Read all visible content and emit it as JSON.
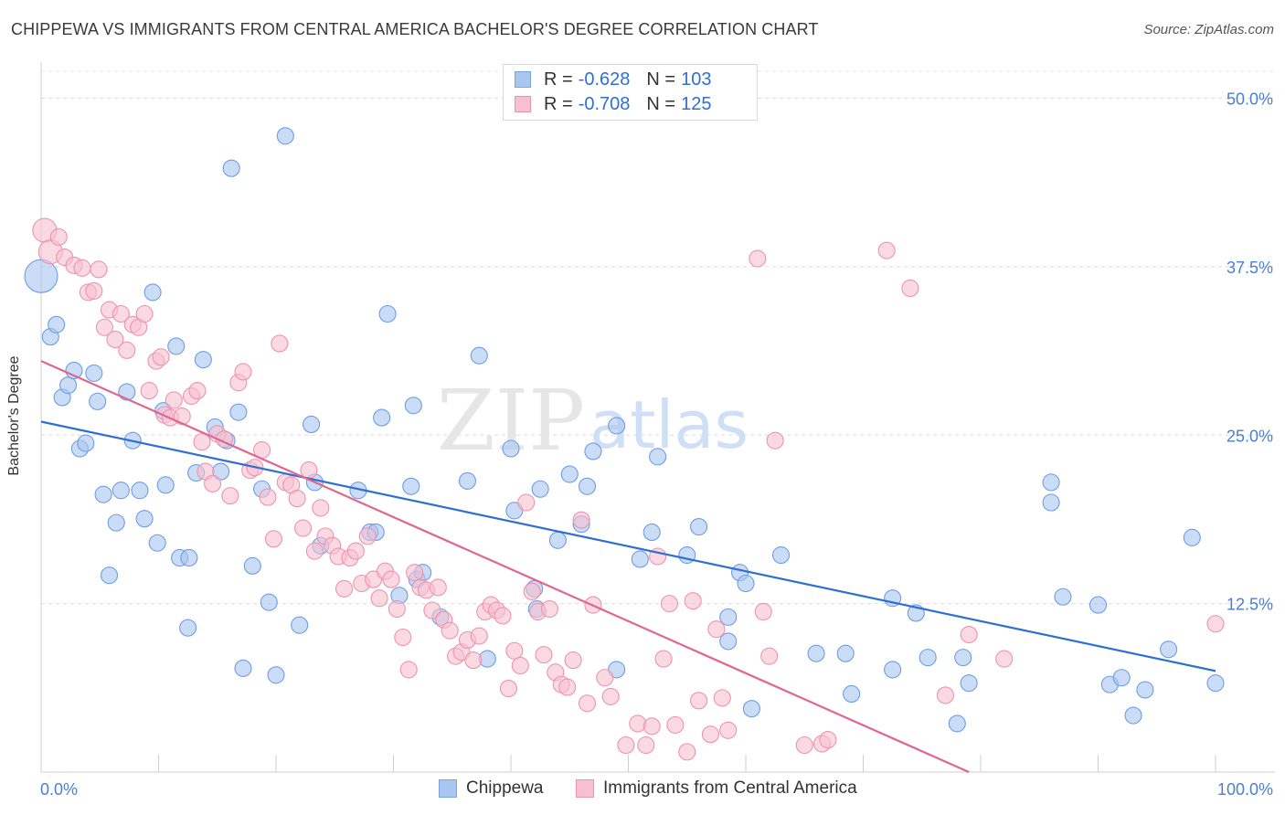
{
  "header": {
    "title": "CHIPPEWA VS IMMIGRANTS FROM CENTRAL AMERICA BACHELOR'S DEGREE CORRELATION CHART",
    "source": "Source: ZipAtlas.com"
  },
  "watermark": {
    "zip": "ZIP",
    "atlas": "atlas"
  },
  "legend": {
    "rows": [
      {
        "r_label": "R =",
        "r_value": "-0.628",
        "n_label": "N =",
        "n_value": "103",
        "color": "#a9c6f0",
        "border": "#7aa3e0"
      },
      {
        "r_label": "R =",
        "r_value": "-0.708",
        "n_label": "N =",
        "n_value": "125",
        "color": "#f8bfd0",
        "border": "#ec93ae"
      }
    ]
  },
  "bottom_legend": {
    "items": [
      {
        "label": "Chippewa",
        "color": "#a9c6f0",
        "border": "#7aa3e0"
      },
      {
        "label": "Immigrants from Central America",
        "color": "#f8bfd0",
        "border": "#ec93ae"
      }
    ]
  },
  "chart_data": {
    "type": "scatter",
    "title": "CHIPPEWA VS IMMIGRANTS FROM CENTRAL AMERICA BACHELOR'S DEGREE CORRELATION CHART",
    "xlabel": "",
    "ylabel": "Bachelor's Degree",
    "xlim": [
      0,
      100
    ],
    "ylim": [
      0,
      52
    ],
    "x_tick_labels": [
      "0.0%",
      "100.0%"
    ],
    "y_ticks": [
      12.5,
      25.0,
      37.5,
      50.0
    ],
    "y_tick_labels": [
      "12.5%",
      "25.0%",
      "37.5%",
      "50.0%"
    ],
    "grid": true,
    "legend_position": "top-center",
    "series": [
      {
        "name": "Chippewa",
        "color": "#6d9de3",
        "fill": "#a9c6f0",
        "trend": {
          "x0": 0,
          "y0": 26.0,
          "x1": 100,
          "y1": 7.5,
          "color": "#2f6fd0"
        },
        "points": [
          [
            0,
            36.8
          ],
          [
            0.8,
            32.3
          ],
          [
            1.3,
            33.2
          ],
          [
            1.8,
            27.8
          ],
          [
            2.3,
            28.7
          ],
          [
            2.8,
            29.8
          ],
          [
            3.3,
            24.0
          ],
          [
            3.8,
            24.4
          ],
          [
            4.5,
            29.6
          ],
          [
            4.8,
            27.5
          ],
          [
            5.3,
            20.6
          ],
          [
            5.8,
            14.6
          ],
          [
            6.4,
            18.5
          ],
          [
            6.8,
            20.9
          ],
          [
            7.3,
            28.2
          ],
          [
            7.8,
            24.6
          ],
          [
            8.4,
            20.9
          ],
          [
            8.8,
            18.8
          ],
          [
            9.5,
            35.6
          ],
          [
            9.9,
            17.0
          ],
          [
            10.4,
            26.8
          ],
          [
            10.6,
            21.3
          ],
          [
            11.5,
            31.6
          ],
          [
            11.8,
            15.9
          ],
          [
            12.6,
            15.9
          ],
          [
            12.5,
            10.7
          ],
          [
            13.2,
            22.2
          ],
          [
            13.8,
            30.6
          ],
          [
            14.8,
            25.6
          ],
          [
            15.3,
            22.3
          ],
          [
            15.8,
            24.6
          ],
          [
            16.2,
            44.8
          ],
          [
            16.8,
            26.7
          ],
          [
            17.2,
            7.7
          ],
          [
            18.0,
            15.3
          ],
          [
            18.8,
            21.0
          ],
          [
            19.4,
            12.6
          ],
          [
            20.0,
            7.2
          ],
          [
            20.8,
            47.2
          ],
          [
            22.0,
            10.9
          ],
          [
            23.0,
            25.8
          ],
          [
            23.3,
            21.5
          ],
          [
            23.8,
            16.8
          ],
          [
            27.0,
            20.9
          ],
          [
            28.0,
            17.8
          ],
          [
            28.5,
            17.8
          ],
          [
            29.0,
            26.3
          ],
          [
            29.5,
            34.0
          ],
          [
            30.5,
            13.1
          ],
          [
            31.5,
            21.2
          ],
          [
            31.7,
            27.2
          ],
          [
            32.0,
            14.3
          ],
          [
            32.5,
            14.8
          ],
          [
            34.0,
            11.5
          ],
          [
            36.3,
            21.6
          ],
          [
            37.3,
            30.9
          ],
          [
            38.0,
            8.4
          ],
          [
            40.0,
            24.0
          ],
          [
            40.3,
            19.4
          ],
          [
            42.0,
            13.6
          ],
          [
            42.2,
            12.1
          ],
          [
            42.5,
            21.0
          ],
          [
            44.0,
            17.2
          ],
          [
            45.0,
            22.1
          ],
          [
            46.0,
            18.4
          ],
          [
            46.5,
            21.2
          ],
          [
            47.0,
            23.8
          ],
          [
            49.0,
            7.6
          ],
          [
            49.0,
            25.7
          ],
          [
            51.0,
            15.8
          ],
          [
            52.0,
            17.8
          ],
          [
            52.5,
            23.4
          ],
          [
            55.0,
            16.1
          ],
          [
            56.0,
            18.2
          ],
          [
            58.5,
            11.5
          ],
          [
            58.5,
            9.7
          ],
          [
            59.5,
            14.8
          ],
          [
            60.0,
            14.0
          ],
          [
            60.5,
            4.7
          ],
          [
            63.0,
            16.1
          ],
          [
            66.0,
            8.8
          ],
          [
            68.5,
            8.8
          ],
          [
            69.0,
            5.8
          ],
          [
            72.5,
            7.6
          ],
          [
            72.5,
            12.9
          ],
          [
            74.5,
            11.8
          ],
          [
            75.5,
            8.5
          ],
          [
            78.0,
            3.6
          ],
          [
            78.5,
            8.5
          ],
          [
            79.0,
            6.6
          ],
          [
            86.0,
            20.0
          ],
          [
            86.0,
            21.5
          ],
          [
            87.0,
            13.0
          ],
          [
            90.0,
            12.4
          ],
          [
            91.0,
            6.5
          ],
          [
            92.0,
            7.0
          ],
          [
            94.0,
            6.1
          ],
          [
            93.0,
            4.2
          ],
          [
            96.0,
            9.1
          ],
          [
            98.0,
            17.4
          ],
          [
            100,
            6.6
          ]
        ]
      },
      {
        "name": "Immigrants from Central America",
        "color": "#ec93ae",
        "fill": "#f8bfd0",
        "trend": {
          "x0": 0,
          "y0": 30.5,
          "x1": 79,
          "y1": 0,
          "color": "#e06690"
        },
        "points": [
          [
            0.3,
            40.2
          ],
          [
            0.8,
            38.6
          ],
          [
            1.5,
            39.7
          ],
          [
            2.0,
            38.2
          ],
          [
            2.8,
            37.6
          ],
          [
            3.5,
            37.4
          ],
          [
            4.0,
            35.6
          ],
          [
            4.5,
            35.7
          ],
          [
            4.9,
            37.3
          ],
          [
            5.4,
            33.0
          ],
          [
            5.8,
            34.3
          ],
          [
            6.3,
            32.1
          ],
          [
            6.8,
            34.0
          ],
          [
            7.3,
            31.3
          ],
          [
            7.8,
            33.2
          ],
          [
            8.3,
            33.0
          ],
          [
            8.8,
            34.0
          ],
          [
            9.2,
            28.3
          ],
          [
            9.8,
            30.5
          ],
          [
            10.2,
            30.8
          ],
          [
            10.5,
            26.5
          ],
          [
            11.0,
            26.3
          ],
          [
            11.3,
            27.6
          ],
          [
            12.0,
            26.4
          ],
          [
            12.8,
            27.9
          ],
          [
            13.3,
            28.3
          ],
          [
            13.7,
            24.5
          ],
          [
            14.0,
            22.3
          ],
          [
            14.6,
            21.4
          ],
          [
            15.0,
            25.1
          ],
          [
            15.6,
            24.7
          ],
          [
            16.1,
            20.5
          ],
          [
            16.8,
            28.9
          ],
          [
            17.2,
            29.7
          ],
          [
            17.8,
            22.4
          ],
          [
            18.2,
            22.6
          ],
          [
            18.8,
            23.9
          ],
          [
            19.3,
            20.4
          ],
          [
            19.8,
            17.3
          ],
          [
            20.3,
            31.8
          ],
          [
            20.8,
            21.5
          ],
          [
            21.3,
            21.3
          ],
          [
            21.8,
            20.3
          ],
          [
            22.3,
            18.1
          ],
          [
            22.8,
            22.4
          ],
          [
            23.3,
            16.4
          ],
          [
            23.8,
            19.6
          ],
          [
            24.2,
            17.5
          ],
          [
            24.8,
            16.8
          ],
          [
            25.3,
            16.0
          ],
          [
            25.8,
            13.6
          ],
          [
            26.3,
            15.9
          ],
          [
            26.8,
            16.4
          ],
          [
            27.3,
            14.0
          ],
          [
            27.8,
            17.5
          ],
          [
            28.3,
            14.3
          ],
          [
            28.8,
            12.9
          ],
          [
            29.3,
            14.9
          ],
          [
            29.8,
            14.3
          ],
          [
            30.3,
            12.1
          ],
          [
            30.8,
            10.0
          ],
          [
            31.3,
            7.6
          ],
          [
            31.8,
            14.8
          ],
          [
            32.3,
            13.7
          ],
          [
            32.8,
            13.5
          ],
          [
            33.3,
            12.0
          ],
          [
            33.8,
            13.7
          ],
          [
            34.3,
            11.3
          ],
          [
            34.8,
            10.5
          ],
          [
            35.3,
            8.6
          ],
          [
            35.8,
            8.9
          ],
          [
            36.3,
            9.8
          ],
          [
            36.8,
            8.3
          ],
          [
            37.3,
            10.1
          ],
          [
            37.8,
            11.9
          ],
          [
            38.3,
            12.4
          ],
          [
            38.8,
            12.0
          ],
          [
            39.3,
            11.6
          ],
          [
            39.8,
            6.2
          ],
          [
            40.3,
            9.0
          ],
          [
            40.8,
            7.9
          ],
          [
            41.3,
            20.0
          ],
          [
            41.8,
            13.4
          ],
          [
            42.3,
            11.9
          ],
          [
            42.8,
            8.7
          ],
          [
            43.3,
            12.1
          ],
          [
            43.8,
            7.4
          ],
          [
            44.3,
            6.5
          ],
          [
            44.8,
            6.3
          ],
          [
            45.3,
            8.3
          ],
          [
            46.0,
            18.7
          ],
          [
            46.5,
            5.1
          ],
          [
            47.0,
            12.4
          ],
          [
            48.0,
            7.0
          ],
          [
            48.5,
            5.6
          ],
          [
            49.8,
            2.0
          ],
          [
            50.8,
            3.6
          ],
          [
            51.5,
            2.0
          ],
          [
            52.0,
            3.4
          ],
          [
            52.5,
            16.0
          ],
          [
            53.0,
            8.4
          ],
          [
            53.5,
            12.5
          ],
          [
            54.0,
            3.5
          ],
          [
            55.0,
            1.5
          ],
          [
            55.5,
            12.7
          ],
          [
            56.0,
            5.3
          ],
          [
            57.0,
            2.8
          ],
          [
            57.5,
            10.6
          ],
          [
            58.0,
            5.5
          ],
          [
            58.5,
            3.1
          ],
          [
            61.0,
            38.1
          ],
          [
            61.5,
            11.9
          ],
          [
            62.0,
            8.6
          ],
          [
            62.5,
            24.6
          ],
          [
            65.0,
            2.0
          ],
          [
            66.5,
            2.1
          ],
          [
            67.0,
            2.4
          ],
          [
            72.0,
            38.7
          ],
          [
            74.0,
            35.9
          ],
          [
            77.0,
            5.7
          ],
          [
            79.0,
            10.2
          ],
          [
            82.0,
            8.4
          ],
          [
            100,
            11.0
          ]
        ]
      }
    ]
  }
}
